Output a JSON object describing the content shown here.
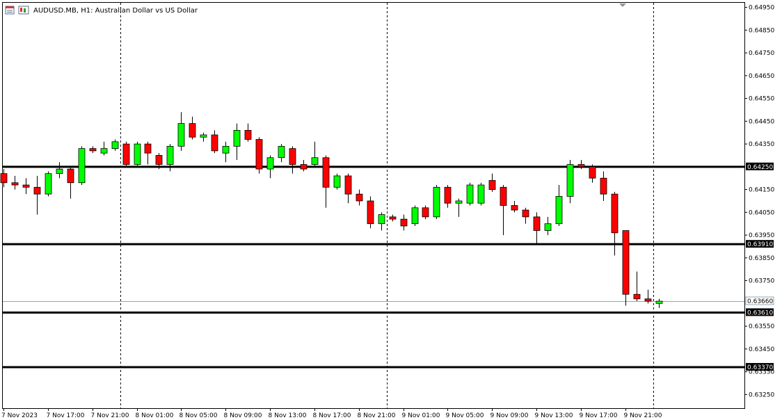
{
  "header": {
    "title": "AUDUSD.MB, H1:  Australian Dollar vs US Dollar"
  },
  "colors": {
    "bull": "#00ff00",
    "bear": "#ff0000",
    "wick": "#000000",
    "level": "#000000",
    "current": "#8ea4b8"
  },
  "icons": [
    "chart-window-icon",
    "candle-chart-icon"
  ],
  "chart_data": {
    "type": "candlestick",
    "symbol": "AUDUSD.MB",
    "timeframe": "H1",
    "description": "Australian Dollar vs US Dollar",
    "ylim": [
      0.6319,
      0.6497
    ],
    "y_ticks": [
      "0.64950",
      "0.64850",
      "0.64750",
      "0.64650",
      "0.64550",
      "0.64450",
      "0.64350",
      "0.64150",
      "0.64050",
      "0.63950",
      "0.63850",
      "0.63750",
      "0.63550",
      "0.63450",
      "0.63350",
      "0.63250"
    ],
    "x_ticks": [
      {
        "label": "7 Nov 2023",
        "bar": 0
      },
      {
        "label": "7 Nov 17:00",
        "bar": 4
      },
      {
        "label": "7 Nov 21:00",
        "bar": 8
      },
      {
        "label": "8 Nov 01:00",
        "bar": 12
      },
      {
        "label": "8 Nov 05:00",
        "bar": 16
      },
      {
        "label": "8 Nov 09:00",
        "bar": 20
      },
      {
        "label": "8 Nov 13:00",
        "bar": 24
      },
      {
        "label": "8 Nov 17:00",
        "bar": 28
      },
      {
        "label": "8 Nov 21:00",
        "bar": 32
      },
      {
        "label": "9 Nov 01:00",
        "bar": 36
      },
      {
        "label": "9 Nov 05:00",
        "bar": 40
      },
      {
        "label": "9 Nov 09:00",
        "bar": 44
      },
      {
        "label": "9 Nov 13:00",
        "bar": 48
      },
      {
        "label": "9 Nov 17:00",
        "bar": 52
      },
      {
        "label": "9 Nov 21:00",
        "bar": 56
      }
    ],
    "vertical_separators_bar": [
      10.5,
      34.5,
      58.5
    ],
    "horizontal_levels": [
      {
        "value": 0.6425,
        "label": "0.64250"
      },
      {
        "value": 0.6391,
        "label": "0.63910"
      },
      {
        "value": 0.6361,
        "label": "0.63610"
      },
      {
        "value": 0.6337,
        "label": "0.63370"
      }
    ],
    "current_price": {
      "value": 0.6366,
      "label": "0.63660"
    },
    "ohlc": [
      [
        0.6422,
        0.6424,
        0.6416,
        0.6418
      ],
      [
        0.6418,
        0.6421,
        0.6415,
        0.6417
      ],
      [
        0.6417,
        0.642,
        0.6413,
        0.6416
      ],
      [
        0.6416,
        0.6421,
        0.6404,
        0.6413
      ],
      [
        0.6413,
        0.6423,
        0.6412,
        0.6422
      ],
      [
        0.6422,
        0.6427,
        0.642,
        0.6424
      ],
      [
        0.6424,
        0.6425,
        0.6411,
        0.6418
      ],
      [
        0.6418,
        0.6434,
        0.6417,
        0.6433
      ],
      [
        0.6433,
        0.6434,
        0.6431,
        0.6432
      ],
      [
        0.6431,
        0.6436,
        0.643,
        0.6433
      ],
      [
        0.6433,
        0.6437,
        0.6432,
        0.6436
      ],
      [
        0.6435,
        0.6436,
        0.6425,
        0.6426
      ],
      [
        0.6426,
        0.6436,
        0.6425,
        0.6435
      ],
      [
        0.6435,
        0.6436,
        0.6426,
        0.6431
      ],
      [
        0.643,
        0.6431,
        0.6424,
        0.6426
      ],
      [
        0.6426,
        0.6435,
        0.6423,
        0.6434
      ],
      [
        0.6434,
        0.6449,
        0.6432,
        0.6444
      ],
      [
        0.6444,
        0.6447,
        0.6437,
        0.6438
      ],
      [
        0.6438,
        0.644,
        0.6436,
        0.6439
      ],
      [
        0.6439,
        0.6441,
        0.6431,
        0.6432
      ],
      [
        0.6431,
        0.6436,
        0.6427,
        0.6434
      ],
      [
        0.6434,
        0.6444,
        0.6428,
        0.6441
      ],
      [
        0.6441,
        0.6444,
        0.6436,
        0.6437
      ],
      [
        0.6437,
        0.6438,
        0.6422,
        0.6424
      ],
      [
        0.6424,
        0.643,
        0.642,
        0.6429
      ],
      [
        0.6429,
        0.6435,
        0.6427,
        0.6434
      ],
      [
        0.6433,
        0.6434,
        0.6422,
        0.6426
      ],
      [
        0.6426,
        0.6428,
        0.6423,
        0.6424
      ],
      [
        0.6426,
        0.6436,
        0.6425,
        0.6429
      ],
      [
        0.6429,
        0.643,
        0.6407,
        0.6416
      ],
      [
        0.6416,
        0.6422,
        0.6415,
        0.6421
      ],
      [
        0.6421,
        0.6422,
        0.6409,
        0.6413
      ],
      [
        0.6413,
        0.6415,
        0.6408,
        0.641
      ],
      [
        0.641,
        0.6412,
        0.6398,
        0.64
      ],
      [
        0.64,
        0.6405,
        0.6397,
        0.6404
      ],
      [
        0.6403,
        0.6404,
        0.6401,
        0.6402
      ],
      [
        0.6402,
        0.6404,
        0.6397,
        0.6399
      ],
      [
        0.64,
        0.6408,
        0.6399,
        0.6407
      ],
      [
        0.6407,
        0.6408,
        0.6402,
        0.6403
      ],
      [
        0.6403,
        0.6417,
        0.6402,
        0.6416
      ],
      [
        0.6416,
        0.6417,
        0.6407,
        0.6409
      ],
      [
        0.6409,
        0.6411,
        0.6403,
        0.641
      ],
      [
        0.6409,
        0.6418,
        0.6408,
        0.6417
      ],
      [
        0.6409,
        0.6418,
        0.6408,
        0.6417
      ],
      [
        0.6419,
        0.6422,
        0.6414,
        0.6415
      ],
      [
        0.6416,
        0.6417,
        0.6395,
        0.6408
      ],
      [
        0.6408,
        0.641,
        0.6405,
        0.6406
      ],
      [
        0.6406,
        0.6407,
        0.64,
        0.6403
      ],
      [
        0.6403,
        0.6405,
        0.6391,
        0.6397
      ],
      [
        0.6397,
        0.6403,
        0.6395,
        0.64
      ],
      [
        0.64,
        0.6417,
        0.6399,
        0.6412
      ],
      [
        0.6412,
        0.6428,
        0.6409,
        0.6426
      ],
      [
        0.6426,
        0.6428,
        0.6424,
        0.6425
      ],
      [
        0.6425,
        0.6426,
        0.6418,
        0.642
      ],
      [
        0.642,
        0.6423,
        0.641,
        0.6413
      ],
      [
        0.6413,
        0.6414,
        0.6386,
        0.6396
      ],
      [
        0.6397,
        0.6397,
        0.6364,
        0.6369
      ],
      [
        0.6369,
        0.6379,
        0.6366,
        0.6367
      ],
      [
        0.6367,
        0.6371,
        0.6365,
        0.6366
      ],
      [
        0.6365,
        0.6367,
        0.6363,
        0.6366
      ]
    ]
  }
}
